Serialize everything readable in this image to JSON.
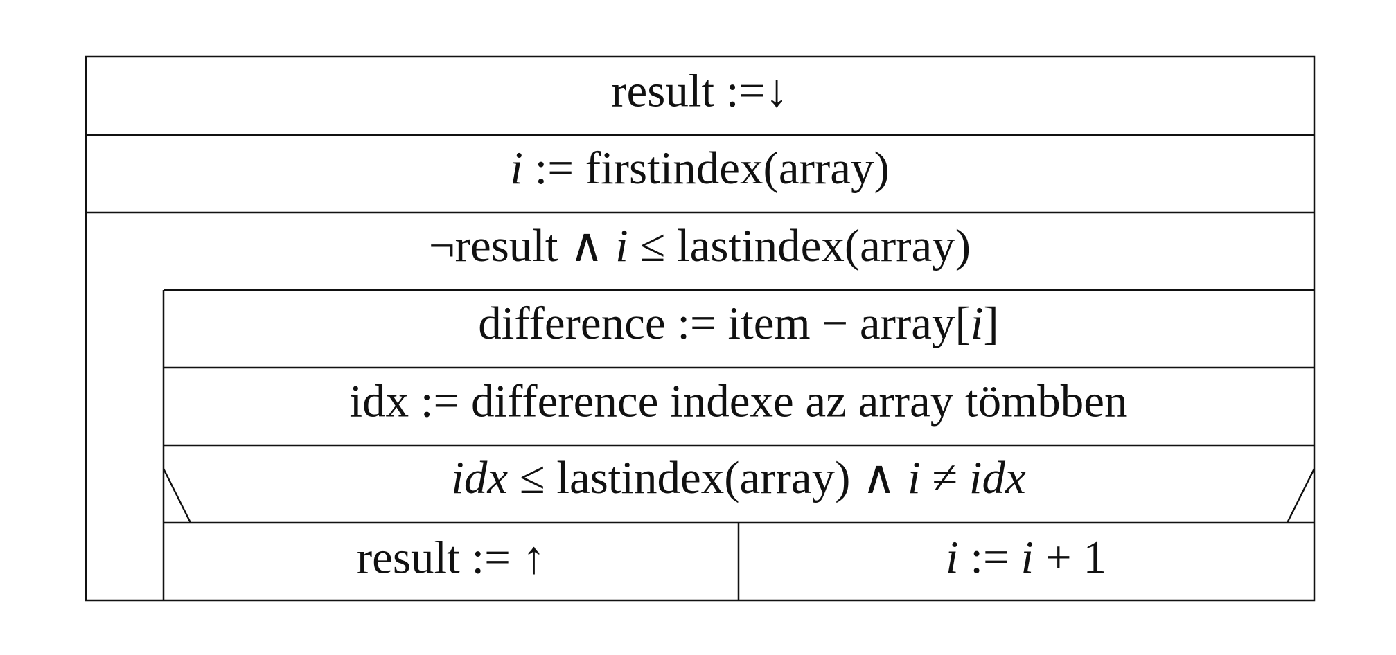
{
  "diagram": {
    "type": "nassi-shneiderman",
    "stmt_init_result": {
      "text": "result :=↓"
    },
    "stmt_init_i": {
      "var": "i",
      "rest": " := firstindex(array)"
    },
    "loop_condition": {
      "prefix": "¬result ∧ ",
      "var": "i",
      "suffix": " ≤ lastindex(array)"
    },
    "stmt_difference": {
      "prefix": "difference := item − array[",
      "var": "i",
      "suffix": "]"
    },
    "stmt_idx": {
      "text": "idx := difference indexe az array tömbben"
    },
    "branch_condition": {
      "var1": "idx",
      "mid": " ≤ lastindex(array) ∧ ",
      "var2": "i",
      "neq": " ≠ ",
      "var3": "idx"
    },
    "branch_true": {
      "text": "result := ↑"
    },
    "branch_false": {
      "var": "i",
      "assign": " := ",
      "var2": "i",
      "rest": " + 1"
    }
  }
}
